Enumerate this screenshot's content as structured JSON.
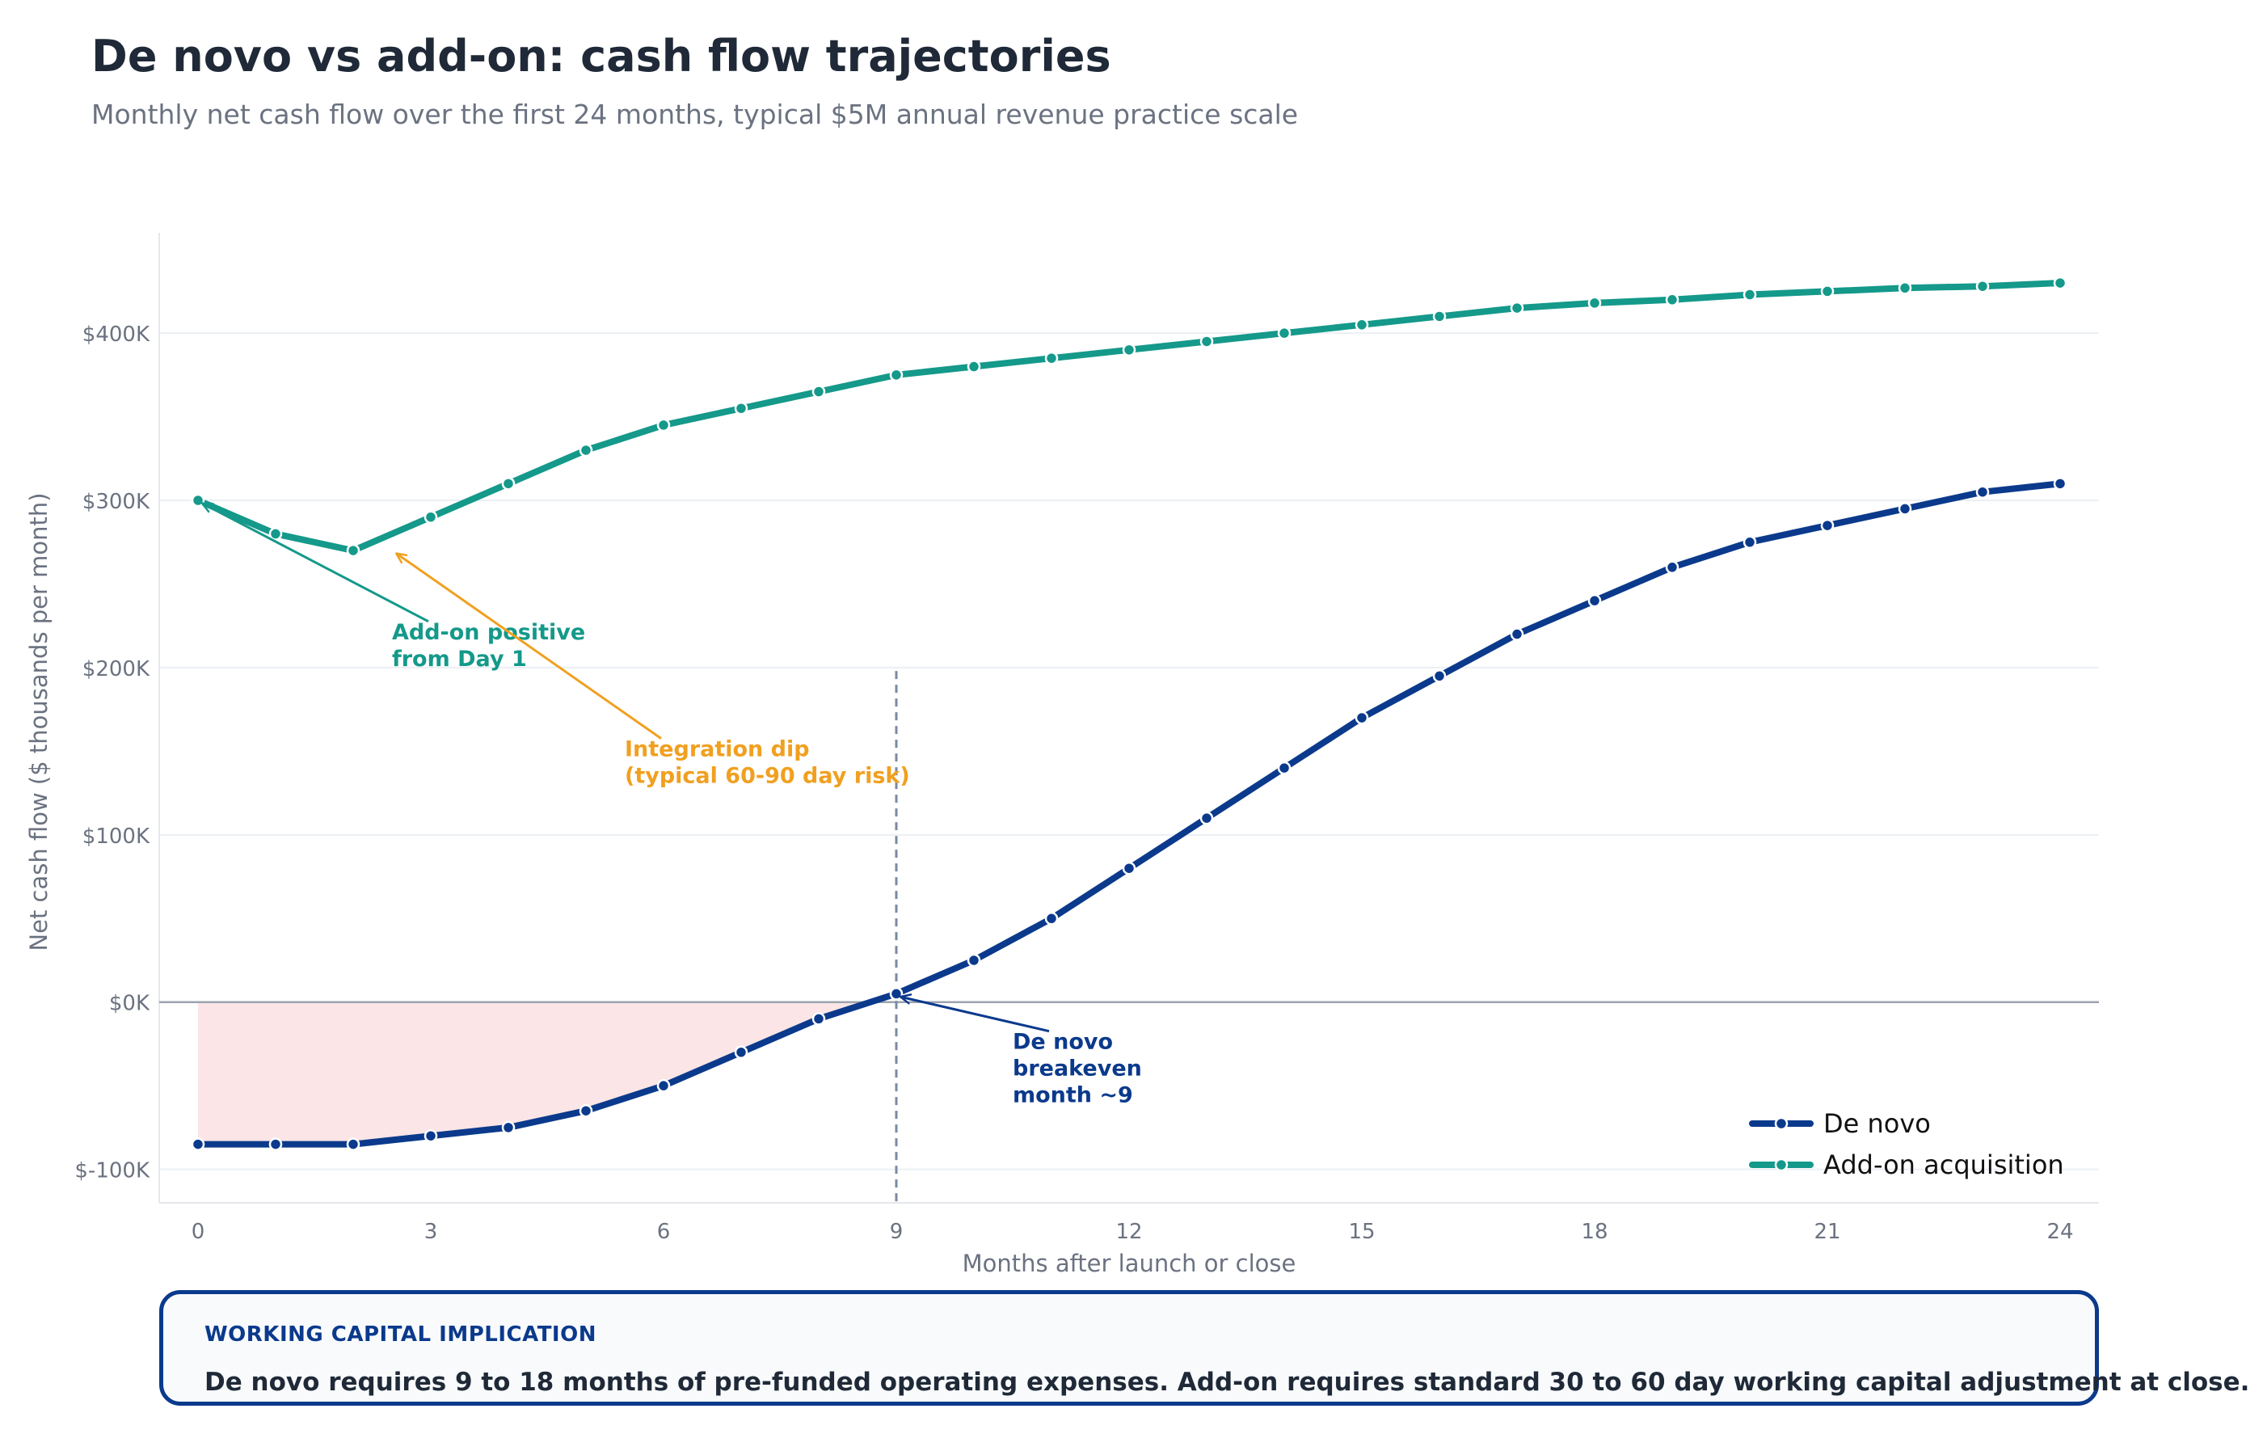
{
  "header": {
    "title": "De novo vs add-on: cash flow trajectories",
    "subtitle": "Monthly net cash flow over the first 24 months, typical $5M annual revenue practice scale"
  },
  "chart_data": {
    "type": "line",
    "xlabel": "Months after launch or close",
    "ylabel": "Net cash flow ($ thousands per month)",
    "xlim": [
      -0.5,
      24.5
    ],
    "ylim": [
      -120,
      460
    ],
    "x_ticks": [
      0,
      3,
      6,
      9,
      12,
      15,
      18,
      21,
      24
    ],
    "x_tick_labels": [
      "0",
      "3",
      "6",
      "9",
      "12",
      "15",
      "18",
      "21",
      "24"
    ],
    "y_ticks": [
      -100,
      0,
      100,
      200,
      300,
      400
    ],
    "y_tick_labels": [
      "$-100K",
      "$0K",
      "$100K",
      "$200K",
      "$300K",
      "$400K"
    ],
    "x": [
      0,
      1,
      2,
      3,
      4,
      5,
      6,
      7,
      8,
      9,
      10,
      11,
      12,
      13,
      14,
      15,
      16,
      17,
      18,
      19,
      20,
      21,
      22,
      23,
      24
    ],
    "series": [
      {
        "name": "De novo",
        "color": "#0b3a8c",
        "values": [
          -85,
          -85,
          -85,
          -80,
          -75,
          -65,
          -50,
          -30,
          -10,
          5,
          25,
          50,
          80,
          110,
          140,
          170,
          195,
          220,
          240,
          260,
          275,
          285,
          295,
          305,
          310
        ]
      },
      {
        "name": "Add-on acquisition",
        "color": "#14998a",
        "values": [
          300,
          280,
          270,
          290,
          310,
          330,
          345,
          355,
          365,
          375,
          380,
          385,
          390,
          395,
          400,
          405,
          410,
          415,
          418,
          420,
          423,
          425,
          427,
          428,
          430
        ]
      }
    ],
    "grid": "horizontal",
    "legend": "bottom-right",
    "breakeven_month": 9,
    "annotations": [
      {
        "lines": [
          "Add-on positive",
          "from Day 1"
        ],
        "color": "#14998a",
        "target": [
          0,
          300
        ],
        "anchor": [
          2.5,
          217
        ]
      },
      {
        "lines": [
          "Integration dip",
          "(typical 60-90 day risk)"
        ],
        "color": "#f0a020",
        "target": [
          2.5,
          270
        ],
        "anchor": [
          5.5,
          147
        ]
      },
      {
        "lines": [
          "De novo",
          "breakeven",
          "month ~9"
        ],
        "color": "#0b3a8c",
        "target": [
          9,
          5
        ],
        "anchor": [
          10.5,
          -28
        ]
      }
    ]
  },
  "callout": {
    "heading": "WORKING CAPITAL IMPLICATION",
    "body": "De novo requires 9 to 18 months of pre-funded operating expenses. Add-on requires standard 30 to 60 day working capital adjustment at close."
  }
}
